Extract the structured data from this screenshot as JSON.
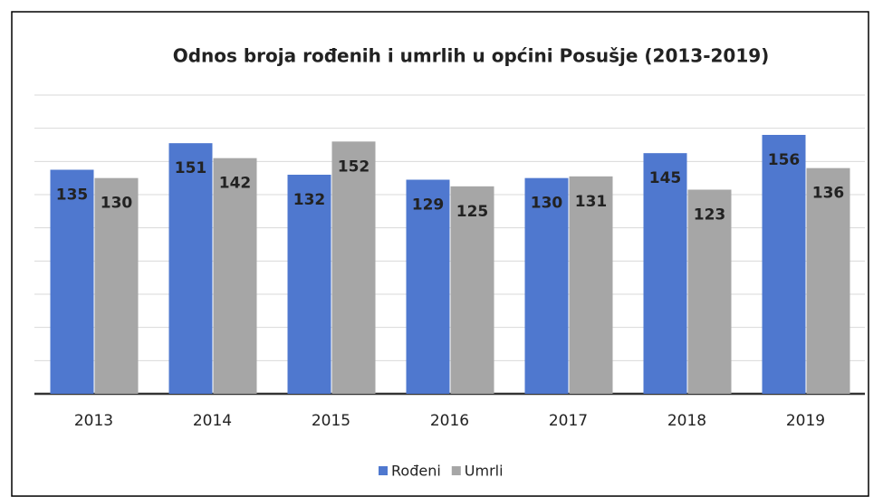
{
  "chart_data": {
    "type": "bar",
    "title": "Odnos broja rođenih i umrlih u općini Posušje  (2013-2019)",
    "categories": [
      "2013",
      "2014",
      "2015",
      "2016",
      "2017",
      "2018",
      "2019"
    ],
    "series": [
      {
        "name": "Rođeni",
        "color": "#4f78cf",
        "values": [
          135,
          151,
          132,
          129,
          130,
          145,
          156
        ]
      },
      {
        "name": "Umrli",
        "color": "#a6a6a6",
        "values": [
          130,
          142,
          152,
          125,
          131,
          123,
          136
        ]
      }
    ],
    "ylim": [
      0,
      180
    ],
    "yticks": [
      0,
      20,
      40,
      60,
      80,
      100,
      120,
      140,
      160,
      180
    ],
    "grid": true,
    "legend": "bottom"
  }
}
